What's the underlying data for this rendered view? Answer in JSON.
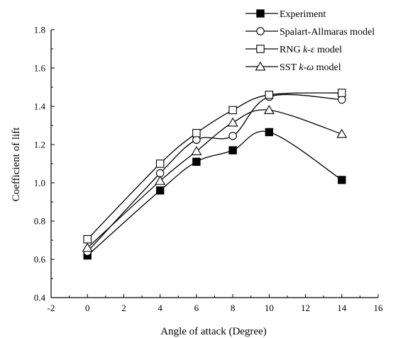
{
  "chart_data": {
    "type": "line",
    "xlabel": "Angle of attack (Degree)",
    "ylabel": "Coefficient of lift",
    "xlim": [
      -2,
      16
    ],
    "ylim": [
      0.4,
      1.8
    ],
    "xticks": [
      -2,
      0,
      2,
      4,
      6,
      8,
      10,
      12,
      14,
      16
    ],
    "yticks": [
      0.4,
      0.6,
      0.8,
      1.0,
      1.2,
      1.4,
      1.6,
      1.8
    ],
    "xtick_labels": [
      "-2",
      "0",
      "2",
      "4",
      "6",
      "8",
      "10",
      "12",
      "14",
      "16"
    ],
    "ytick_labels": [
      "0.4",
      "0.6",
      "0.8",
      "1.0",
      "1.2",
      "1.4",
      "1.6",
      "1.8"
    ],
    "grid": false,
    "legend_position": "top-right",
    "legend": [
      {
        "parts": [
          {
            "text": "Experiment",
            "italic": false
          }
        ]
      },
      {
        "parts": [
          {
            "text": "Spalart-Allmaras model",
            "italic": false
          }
        ]
      },
      {
        "parts": [
          {
            "text": "RNG ",
            "italic": false
          },
          {
            "text": "k-ε",
            "italic": true
          },
          {
            "text": " model",
            "italic": false
          }
        ]
      },
      {
        "parts": [
          {
            "text": "SST ",
            "italic": false
          },
          {
            "text": "k-ω",
            "italic": true
          },
          {
            "text": " model",
            "italic": false
          }
        ]
      }
    ],
    "series": [
      {
        "name": "Experiment",
        "marker": "filled-square",
        "x": [
          0,
          4,
          6,
          8,
          10,
          14
        ],
        "y": [
          0.62,
          0.96,
          1.11,
          1.17,
          1.265,
          1.015
        ]
      },
      {
        "name": "Spalart-Allmaras model",
        "marker": "open-circle",
        "x": [
          0,
          4,
          6,
          8,
          10,
          14
        ],
        "y": [
          0.64,
          1.05,
          1.225,
          1.245,
          1.45,
          1.435
        ]
      },
      {
        "name": "RNG k-ε model",
        "marker": "open-square",
        "x": [
          0,
          4,
          6,
          8,
          10,
          14
        ],
        "y": [
          0.705,
          1.1,
          1.26,
          1.38,
          1.46,
          1.47
        ]
      },
      {
        "name": "SST k-ω model",
        "marker": "open-triangle",
        "x": [
          0,
          4,
          6,
          8,
          10,
          14
        ],
        "y": [
          0.66,
          1.01,
          1.165,
          1.315,
          1.38,
          1.255
        ]
      }
    ]
  }
}
